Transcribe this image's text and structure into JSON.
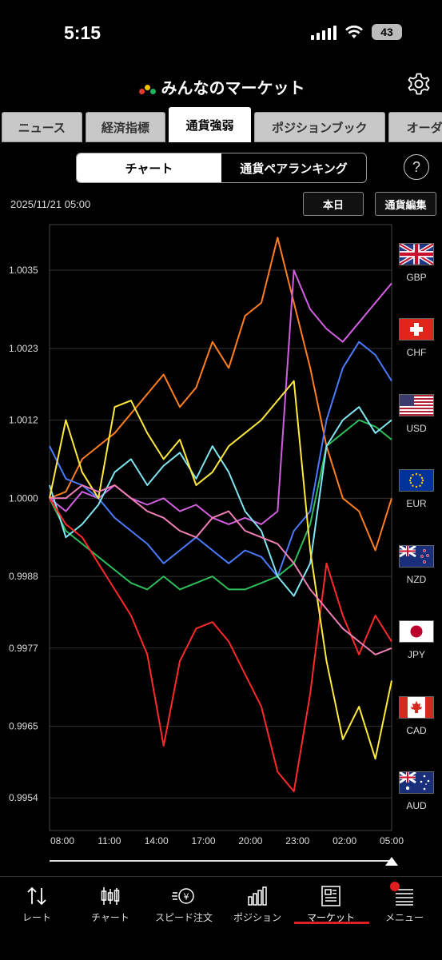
{
  "status": {
    "time": "5:15",
    "battery": "43"
  },
  "header": {
    "title": "みんなのマーケット"
  },
  "tabs": [
    {
      "label": "ニュース",
      "active": false
    },
    {
      "label": "経済指標",
      "active": false
    },
    {
      "label": "通貨強弱",
      "active": true
    },
    {
      "label": "ポジションブック",
      "active": false
    },
    {
      "label": "オーダ",
      "active": false
    }
  ],
  "segment": {
    "chart": "チャート",
    "ranking": "通貨ペアランキング",
    "selected": "チャート"
  },
  "help_label": "?",
  "datetime": "2025/11/21 05:00",
  "buttons": {
    "today": "本日",
    "edit": "通貨編集"
  },
  "currencies": [
    "GBP",
    "CHF",
    "USD",
    "EUR",
    "NZD",
    "JPY",
    "CAD",
    "AUD"
  ],
  "chart_data": {
    "type": "line",
    "x_ticks": [
      "08:00",
      "11:00",
      "14:00",
      "17:00",
      "20:00",
      "23:00",
      "02:00",
      "05:00"
    ],
    "y_ticks": [
      1.0035,
      1.0023,
      1.0012,
      1.0,
      0.9988,
      0.9977,
      0.9965,
      0.9954
    ],
    "ylim": [
      0.9949,
      1.0042
    ],
    "grid": true,
    "series": [
      {
        "color": "#ff7f1e",
        "values": [
          1.0,
          1.0001,
          1.0006,
          1.0008,
          1.001,
          1.0013,
          1.0016,
          1.0019,
          1.0014,
          1.0017,
          1.0024,
          1.002,
          1.0028,
          1.003,
          1.004,
          1.003,
          1.002,
          1.0008,
          1.0,
          0.9998,
          0.9992,
          1.0
        ]
      },
      {
        "color": "#d25fe0",
        "values": [
          1.0,
          0.9998,
          1.0001,
          1.0,
          1.0002,
          1.0,
          0.9999,
          1.0,
          0.9998,
          0.9999,
          0.9997,
          0.9996,
          0.9997,
          0.9996,
          0.9998,
          1.0035,
          1.0029,
          1.0026,
          1.0024,
          1.0027,
          1.003,
          1.0033
        ]
      },
      {
        "color": "#4a7bff",
        "values": [
          1.0008,
          1.0003,
          1.0002,
          1.0,
          0.9997,
          0.9995,
          0.9993,
          0.999,
          0.9992,
          0.9994,
          0.9992,
          0.999,
          0.9992,
          0.9991,
          0.9988,
          0.9995,
          0.9998,
          1.0012,
          1.002,
          1.0024,
          1.0022,
          1.0018
        ]
      },
      {
        "color": "#2ebd5a",
        "values": [
          1.0,
          0.9995,
          0.9993,
          0.9991,
          0.9989,
          0.9987,
          0.9986,
          0.9988,
          0.9986,
          0.9987,
          0.9988,
          0.9986,
          0.9986,
          0.9987,
          0.9988,
          0.999,
          0.9996,
          1.0008,
          1.001,
          1.0012,
          1.0011,
          1.0009
        ]
      },
      {
        "color": "#7fe6f2",
        "values": [
          1.0002,
          0.9994,
          0.9996,
          0.9999,
          1.0004,
          1.0006,
          1.0002,
          1.0005,
          1.0007,
          1.0003,
          1.0008,
          1.0004,
          0.9998,
          0.9995,
          0.9988,
          0.9985,
          0.999,
          1.0008,
          1.0012,
          1.0014,
          1.001,
          1.0012
        ]
      },
      {
        "color": "#ff2a2a",
        "values": [
          1.0,
          0.9996,
          0.9994,
          0.999,
          0.9986,
          0.9982,
          0.9976,
          0.9962,
          0.9975,
          0.998,
          0.9981,
          0.9978,
          0.9973,
          0.9968,
          0.9958,
          0.9955,
          0.997,
          0.999,
          0.9982,
          0.9976,
          0.9982,
          0.9978
        ]
      },
      {
        "color": "#ffe93b",
        "values": [
          1.0,
          1.0012,
          1.0004,
          1.0,
          1.0014,
          1.0015,
          1.001,
          1.0006,
          1.0009,
          1.0002,
          1.0004,
          1.0008,
          1.001,
          1.0012,
          1.0015,
          1.0018,
          0.9992,
          0.9975,
          0.9963,
          0.9968,
          0.996,
          0.9972
        ]
      },
      {
        "color": "#f07fb5",
        "values": [
          1.0,
          1.0,
          1.0002,
          1.0001,
          1.0002,
          1.0,
          0.9998,
          0.9997,
          0.9995,
          0.9994,
          0.9997,
          0.9998,
          0.9995,
          0.9994,
          0.9993,
          0.999,
          0.9986,
          0.9983,
          0.998,
          0.9978,
          0.9976,
          0.9977
        ]
      }
    ]
  },
  "nav": [
    {
      "label": "レート",
      "icon": "rate-arrows-icon"
    },
    {
      "label": "チャート",
      "icon": "candlestick-icon"
    },
    {
      "label": "スピード注文",
      "icon": "speed-order-icon"
    },
    {
      "label": "ポジション",
      "icon": "position-bars-icon"
    },
    {
      "label": "マーケット",
      "icon": "market-news-icon",
      "active": true
    },
    {
      "label": "メニュー",
      "icon": "menu-list-icon",
      "badge": true
    }
  ]
}
